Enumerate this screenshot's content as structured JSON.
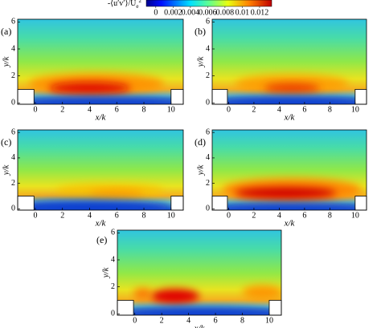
{
  "colorbar": {
    "label": {
      "text": "-⟨u′v′⟩/U",
      "sub": "e",
      "sup": "2"
    },
    "lim": [
      -0.0011,
      0.0134
    ],
    "ticks": [
      0,
      0.002,
      0.004,
      0.006,
      0.008,
      0.01,
      0.012
    ]
  },
  "chart_data": [
    {
      "type": "contour",
      "label": "(a)",
      "xlabel": "x/k",
      "ylabel": "y/k",
      "xlim": [
        -1.3,
        10.9
      ],
      "ylim": [
        -0.1,
        6.2
      ],
      "xticks": [
        0,
        2,
        4,
        6,
        8,
        10
      ],
      "yticks": [
        0,
        2,
        4,
        6
      ]
    },
    {
      "type": "contour",
      "label": "(b)",
      "xlabel": "x/k",
      "ylabel": "y/k",
      "xlim": [
        -1.3,
        10.9
      ],
      "ylim": [
        -0.1,
        6.2
      ],
      "xticks": [
        0,
        2,
        4,
        6,
        8,
        10
      ],
      "yticks": [
        0,
        2,
        4,
        6
      ]
    },
    {
      "type": "contour",
      "label": "(c)",
      "xlabel": "x/k",
      "ylabel": "y/k",
      "xlim": [
        -1.3,
        10.9
      ],
      "ylim": [
        -0.1,
        6.2
      ],
      "xticks": [
        0,
        2,
        4,
        6,
        8,
        10
      ],
      "yticks": [
        0,
        2,
        4,
        6
      ]
    },
    {
      "type": "contour",
      "label": "(d)",
      "xlabel": "x/k",
      "ylabel": "y/k",
      "xlim": [
        -1.3,
        10.9
      ],
      "ylim": [
        -0.1,
        6.2
      ],
      "xticks": [
        0,
        2,
        4,
        6,
        8,
        10
      ],
      "yticks": [
        0,
        2,
        4,
        6
      ]
    },
    {
      "type": "contour",
      "label": "(e)",
      "xlabel": "x/k",
      "ylabel": "y/k",
      "xlim": [
        -1.3,
        10.9
      ],
      "ylim": [
        -0.1,
        6.2
      ],
      "xticks": [
        0,
        2,
        4,
        6,
        8,
        10
      ],
      "yticks": [
        0,
        2,
        4,
        6
      ]
    }
  ]
}
